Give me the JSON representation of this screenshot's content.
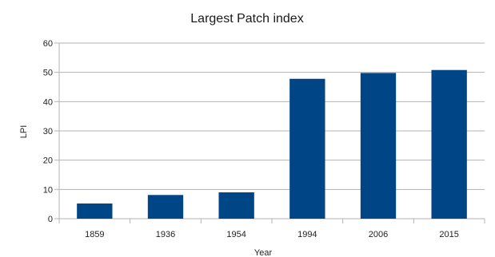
{
  "chart_data": {
    "type": "bar",
    "title": "Largest Patch index",
    "xlabel": "Year",
    "ylabel": "LPI",
    "categories": [
      "1859",
      "1936",
      "1954",
      "1994",
      "2006",
      "2015"
    ],
    "values": [
      5.2,
      8.1,
      9.0,
      47.8,
      49.8,
      50.8
    ],
    "ylim": [
      0,
      60
    ],
    "yticks": [
      0,
      10,
      20,
      30,
      40,
      50,
      60
    ],
    "grid": true,
    "legend": "none",
    "colors": {
      "bar": "#004586",
      "grid": "#b3b3b3",
      "axis": "#b3b3b3"
    }
  }
}
